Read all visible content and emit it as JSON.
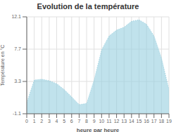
{
  "chart_data": {
    "type": "area",
    "title": "Evolution de la température",
    "xlabel": "heure par heure",
    "ylabel": "Température en °C",
    "x": [
      0,
      1,
      2,
      3,
      4,
      5,
      6,
      7,
      8,
      9,
      10,
      11,
      12,
      13,
      14,
      15,
      16,
      17,
      18,
      19
    ],
    "values": [
      0.4,
      3.5,
      3.6,
      3.4,
      3.0,
      2.2,
      1.2,
      0.15,
      0.3,
      3.5,
      7.6,
      9.5,
      10.3,
      10.7,
      11.5,
      11.7,
      11.1,
      9.5,
      6.5,
      2.2
    ],
    "color": "#96cfe0",
    "line_style": "dotted",
    "xlim": [
      0,
      19
    ],
    "xticks": [
      0,
      1,
      2,
      3,
      4,
      5,
      6,
      7,
      8,
      9,
      10,
      11,
      12,
      13,
      14,
      15,
      16,
      17,
      18,
      19
    ],
    "ylim": [
      -1.1,
      12.1
    ],
    "yticks": [
      -1.1,
      3.3,
      7.7,
      12.1
    ],
    "grid": true
  }
}
